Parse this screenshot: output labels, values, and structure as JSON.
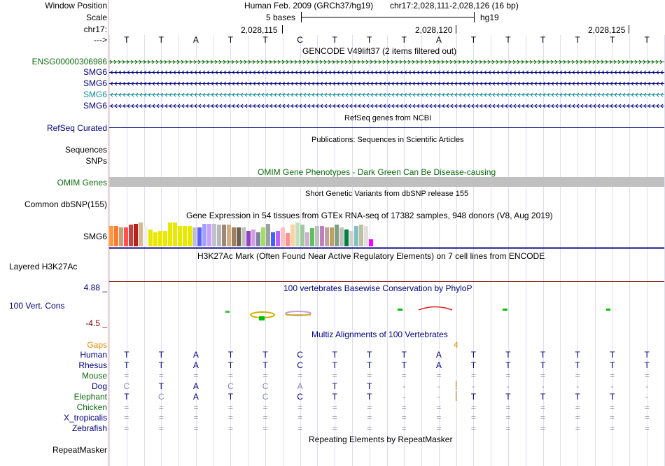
{
  "header": {
    "window_position_label": "Window Position",
    "scale_label": "Scale",
    "chrom_label": "chr17:",
    "strand_label": "--->",
    "assembly_title": "Human Feb. 2009 (GRCh37/hg19)",
    "position_text": "chr17:2,028,111-2,028,126 (16 bp)",
    "scale_text": "5 bases",
    "db_text": "hg19",
    "coord_ticks": [
      "2,028,115",
      "2,028,120",
      "2,028,125"
    ],
    "tick_bases": [
      5,
      10,
      15
    ]
  },
  "bases": [
    "T",
    "T",
    "A",
    "T",
    "T",
    "C",
    "T",
    "T",
    "T",
    "A",
    "T",
    "T",
    "T",
    "T",
    "T",
    "T"
  ],
  "gencode": {
    "title": "GENCODE V49lift37 (2 items filtered out)",
    "rows": [
      {
        "label": "ENSG00000306986",
        "color": "#0c6a0c",
        "strand": "+"
      },
      {
        "label": "SMG6",
        "color": "#000080",
        "strand": "-"
      },
      {
        "label": "SMG6",
        "color": "#000080",
        "strand": "-"
      },
      {
        "label": "SMG6",
        "color": "#0a8c9c",
        "strand": "-"
      },
      {
        "label": "SMG6",
        "color": "#000080",
        "strand": "-"
      }
    ]
  },
  "refseq": {
    "title": "RefSeq genes from NCBI",
    "label": "RefSeq Curated"
  },
  "publications": {
    "title": "Publications: Sequences in Scientific Articles",
    "label1": "Sequences",
    "label2": "SNPs"
  },
  "omim": {
    "title": "OMIM Gene Phenotypes - Dark Green Can Be Disease-causing",
    "label": "OMIM Genes"
  },
  "dbsnp": {
    "title": "Short Genetic Variants from dbSNP release 155",
    "label": "Common dbSNP(155)"
  },
  "gtex": {
    "title": "Gene Expression in 54 tissues from GTEx RNA-seq of 17382 samples, 948 donors (V8, Aug 2019)",
    "label": "SMG6",
    "values": [
      0.85,
      0.85,
      0.8,
      0.8,
      0.9,
      0.95,
      1.0,
      0.85,
      0.7,
      0.6,
      0.65,
      0.65,
      1.0,
      1.0,
      0.85,
      0.85,
      0.85,
      0.8,
      0.8,
      0.95,
      0.95,
      0.95,
      0.9,
      0.9,
      0.9,
      0.8,
      0.8,
      0.8,
      0.65,
      0.7,
      0.6,
      0.8,
      0.95,
      0.6,
      0.65,
      0.8,
      0.55,
      0.9,
      1.0,
      0.9,
      0.6,
      0.75,
      0.85,
      0.85,
      0.8,
      0.8,
      0.9,
      0.8,
      0.7,
      0.65,
      0.85,
      0.9,
      0.85,
      0.3
    ],
    "colors": [
      "#ff9a3c",
      "#ff7a2c",
      "#c8a078",
      "#ff5050",
      "#c84040",
      "#b82020",
      "#d8b890",
      "#f0f0f0",
      "#e8e800",
      "#e8e800",
      "#e8e800",
      "#e8e800",
      "#e8e800",
      "#e8e800",
      "#e8e800",
      "#e8e800",
      "#e8e800",
      "#c0c0c0",
      "#6060ff",
      "#a0a0ff",
      "#c8a0ff",
      "#c0c0d0",
      "#b8b8b8",
      "#a08878",
      "#d0b080",
      "#a08060",
      "#706050",
      "#c0c0c0",
      "#9040c0",
      "#d0a0e0",
      "#8080a0",
      "#a0e060",
      "#a0a0a0",
      "#4060ff",
      "#c060ff",
      "#ffc0c0",
      "#ff9090",
      "#ffd0a0",
      "#c0e0c0",
      "#a0c8a0",
      "#d0b0d0",
      "#60c060",
      "#c0c0c0",
      "#c080c0",
      "#c0a0a0",
      "#c0a060",
      "#80a080",
      "#c0c0c0",
      "#008040",
      "#d0d0d0",
      "#80c0c0",
      "#c0c0a0",
      "#e0e0e0",
      "#ff00ff"
    ]
  },
  "h3k27ac": {
    "title": "H3K27Ac Mark (Often Found Near Active Regulatory Elements) on 7 cell lines from ENCODE",
    "label": "Layered H3K27Ac"
  },
  "phylop": {
    "title": "100 vertebrates Basewise Conservation by PhyloP",
    "label": "100 Vert. Cons",
    "max": "4.88 _",
    "min": "-4.5 _"
  },
  "multiz": {
    "title": "Multiz Alignments of 100 Vertebrates",
    "gaps_label": "Gaps",
    "gap_count": "4",
    "species": [
      {
        "name": "Human",
        "bases": [
          "T",
          "T",
          "A",
          "T",
          "T",
          "C",
          "T",
          "T",
          "T",
          "A",
          "T",
          "T",
          "T",
          "T",
          "T",
          "T"
        ]
      },
      {
        "name": "Rhesus",
        "bases": [
          "T",
          "T",
          "A",
          "T",
          "T",
          "C",
          "T",
          "T",
          "T",
          "A",
          "T",
          "T",
          "T",
          "T",
          "T",
          "T"
        ]
      },
      {
        "name": "Mouse",
        "bases": [
          "=",
          "=",
          "=",
          "=",
          "=",
          "=",
          "=",
          "=",
          "=",
          "=",
          "=",
          "=",
          "=",
          "=",
          "=",
          "="
        ]
      },
      {
        "name": "Dog",
        "bases": [
          "C",
          "T",
          "A",
          "C",
          "C",
          "A",
          "T",
          "T",
          "-",
          "-",
          "-",
          "-",
          "-",
          "-",
          "-",
          "-"
        ]
      },
      {
        "name": "Elephant",
        "bases": [
          "T",
          "C",
          "A",
          "T",
          "C",
          "C",
          "T",
          "T",
          "-",
          "-",
          "T",
          "T",
          "T",
          "T",
          "T",
          "-"
        ]
      },
      {
        "name": "Chicken",
        "bases": [
          "=",
          "=",
          "=",
          "=",
          "=",
          "=",
          "=",
          "=",
          "=",
          "=",
          "=",
          "=",
          "=",
          "=",
          "=",
          "="
        ]
      },
      {
        "name": "X_tropicalis",
        "bases": [
          "=",
          "=",
          "=",
          "=",
          "=",
          "=",
          "=",
          "=",
          "=",
          "=",
          "=",
          "=",
          "=",
          "=",
          "=",
          "="
        ]
      },
      {
        "name": "Zebrafish",
        "bases": [
          "=",
          "=",
          "=",
          "=",
          "=",
          "=",
          "=",
          "=",
          "=",
          "=",
          "=",
          "=",
          "=",
          "=",
          "=",
          "="
        ]
      }
    ]
  },
  "repeatmasker": {
    "title": "Repeating Elements by RepeatMasker",
    "label": "RepeatMasker"
  },
  "colors": {
    "navy": "#000080",
    "green": "#0c6a0c",
    "teal": "#0a8c9c",
    "gaps": "#e08a00",
    "border_pink": "#e8a0a8",
    "grid": "#c8c8e8",
    "omim_bar": "#c0c0c0",
    "track_line": "#800000"
  }
}
